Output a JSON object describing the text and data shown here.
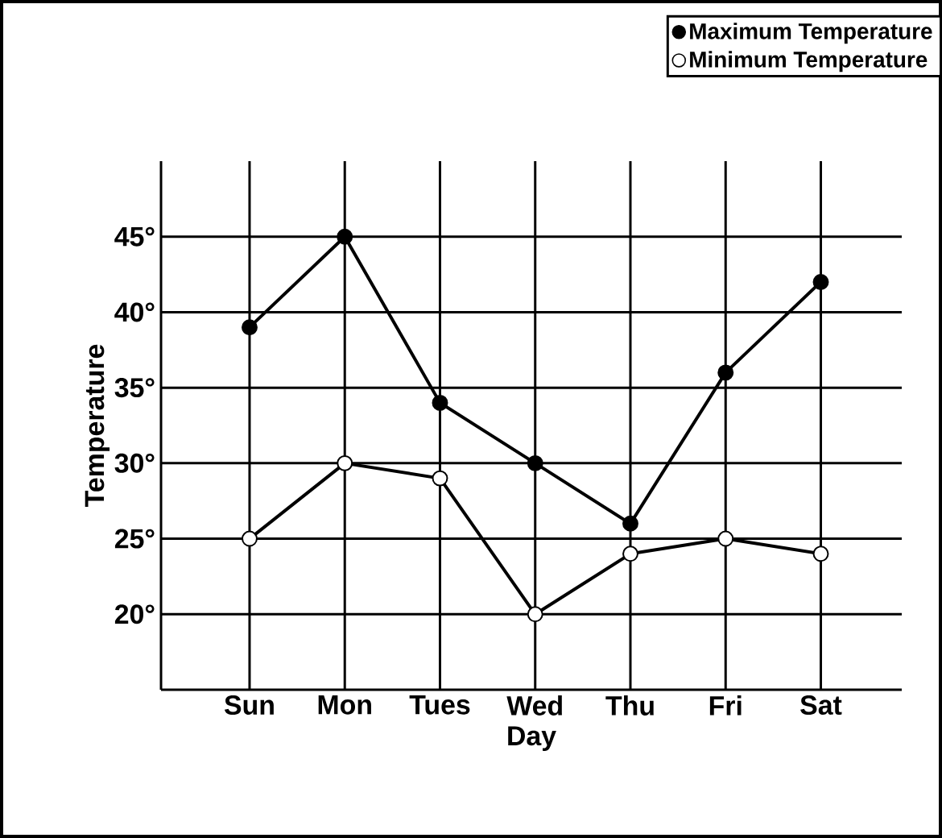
{
  "chart_data": {
    "type": "line",
    "xlabel": "Day",
    "ylabel": "Temperature",
    "categories": [
      "Sun",
      "Mon",
      "Tues",
      "Wed",
      "Thu",
      "Fri",
      "Sat"
    ],
    "series": [
      {
        "name": "Maximum Temperature",
        "color": "#000000",
        "values": [
          39,
          45,
          34,
          30,
          26,
          36,
          42
        ]
      },
      {
        "name": "Minimum Temperature",
        "color": "#ffffff",
        "values": [
          25,
          30,
          29,
          20,
          24,
          25,
          24
        ]
      }
    ],
    "ylim": [
      15,
      50
    ],
    "yticks": [
      {
        "value": 20,
        "label": "20°"
      },
      {
        "value": 25,
        "label": "25°"
      },
      {
        "value": 30,
        "label": "30°"
      },
      {
        "value": 35,
        "label": "35°"
      },
      {
        "value": 40,
        "label": "40°"
      },
      {
        "value": 45,
        "label": "45°"
      }
    ],
    "grid": true,
    "legend": "top right",
    "marker": "circle",
    "line_style": "solid"
  }
}
